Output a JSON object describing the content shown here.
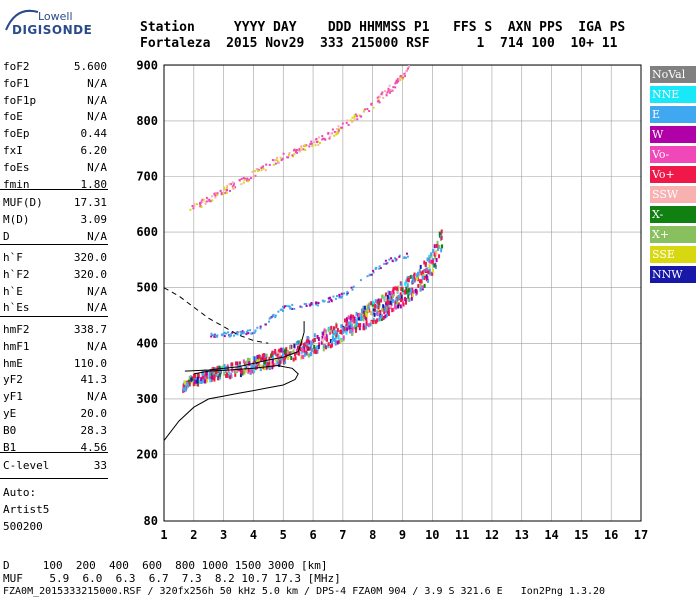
{
  "logo": {
    "line1": "Lowell",
    "line2": "DIGISONDE"
  },
  "header": {
    "row1": "Station     YYYY DAY    DDD HHMMSS P1   FFS S  AXN PPS  IGA PS",
    "row2": "Fortaleza  2015 Nov29  333 215000 RSF      1  714 100  10+ 11"
  },
  "params_group1": [
    {
      "name": "foF2",
      "value": "5.600"
    },
    {
      "name": "foF1",
      "value": "N/A"
    },
    {
      "name": "foF1p",
      "value": "N/A"
    },
    {
      "name": "foE",
      "value": "N/A"
    },
    {
      "name": "foEp",
      "value": "0.44"
    },
    {
      "name": "fxI",
      "value": "6.20"
    },
    {
      "name": "foEs",
      "value": "N/A"
    },
    {
      "name": "fmin",
      "value": "1.80"
    }
  ],
  "params_group2": [
    {
      "name": "MUF(D)",
      "value": "17.31"
    },
    {
      "name": "M(D)",
      "value": "3.09"
    },
    {
      "name": "D",
      "value": "N/A"
    }
  ],
  "params_group3": [
    {
      "name": "h`F",
      "value": "320.0"
    },
    {
      "name": "h`F2",
      "value": "320.0"
    },
    {
      "name": "h`E",
      "value": "N/A"
    },
    {
      "name": "h`Es",
      "value": "N/A"
    }
  ],
  "params_group4": [
    {
      "name": "hmF2",
      "value": "338.7"
    },
    {
      "name": "hmF1",
      "value": "N/A"
    },
    {
      "name": "hmE",
      "value": "110.0"
    },
    {
      "name": "yF2",
      "value": "41.3"
    },
    {
      "name": "yF1",
      "value": "N/A"
    },
    {
      "name": "yE",
      "value": "20.0"
    },
    {
      "name": "B0",
      "value": "28.3"
    },
    {
      "name": "B1",
      "value": "4.56"
    }
  ],
  "params_group5": [
    {
      "name": "C-level",
      "value": "33"
    }
  ],
  "footer_left": {
    "auto": "Auto:",
    "artist": "Artist5",
    "code": "500200"
  },
  "legend": [
    {
      "label": "NoVal",
      "color": "#808080"
    },
    {
      "label": "NNE",
      "color": "#18e8f8"
    },
    {
      "label": "E",
      "color": "#40a8f0"
    },
    {
      "label": "W",
      "color": "#b000a8"
    },
    {
      "label": "Vo-",
      "color": "#f048b8"
    },
    {
      "label": "Vo+",
      "color": "#f01848"
    },
    {
      "label": "SSW",
      "color": "#f8b0b0"
    },
    {
      "label": "X-",
      "color": "#108010"
    },
    {
      "label": "X+",
      "color": "#88c060"
    },
    {
      "label": "SSE",
      "color": "#d8d810"
    },
    {
      "label": "NNW",
      "color": "#1818a8"
    }
  ],
  "bottom": {
    "d_row": "D     100  200  400  600  800 1000 1500 3000 [km]",
    "muf_row": "MUF    5.9  6.0  6.3  6.7  7.3  8.2 10.7 17.3 [MHz]",
    "file_row": "FZA0M_2015333215000.RSF / 320fx256h 50 kHz 5.0 km / DPS-4 FZA0M 904 / 3.9 S 321.6 E   Ion2Png 1.3.20"
  },
  "chart_data": {
    "type": "scatter",
    "title": "",
    "xlabel": "",
    "ylabel": "",
    "xlim": [
      1,
      17
    ],
    "ylim": [
      80,
      900
    ],
    "xticks": [
      "1",
      "2",
      "3",
      "4",
      "5",
      "6",
      "7",
      "8",
      "9",
      "10",
      "11",
      "12",
      "13",
      "14",
      "15",
      "16",
      "17"
    ],
    "yticks": [
      "900",
      "800",
      "700",
      "600",
      "500",
      "400",
      "300",
      "200",
      "80"
    ],
    "grid": true,
    "legend_position": "right",
    "echo_traces": [
      {
        "name": "O-trace F2",
        "points": [
          [
            1.6,
            325
          ],
          [
            2.0,
            335
          ],
          [
            2.5,
            345
          ],
          [
            3.0,
            350
          ],
          [
            3.5,
            355
          ],
          [
            4.0,
            362
          ],
          [
            4.5,
            370
          ],
          [
            5.0,
            378
          ],
          [
            5.5,
            388
          ],
          [
            6.0,
            398
          ],
          [
            6.5,
            410
          ],
          [
            7.0,
            425
          ],
          [
            7.5,
            440
          ],
          [
            8.0,
            455
          ],
          [
            8.5,
            470
          ],
          [
            9.0,
            490
          ],
          [
            9.5,
            510
          ],
          [
            10.0,
            545
          ],
          [
            10.3,
            590
          ]
        ]
      },
      {
        "name": "multi-hop",
        "points": [
          [
            1.8,
            640
          ],
          [
            2.5,
            660
          ],
          [
            3.0,
            675
          ],
          [
            3.5,
            690
          ],
          [
            4.0,
            705
          ],
          [
            5.0,
            735
          ],
          [
            6.0,
            760
          ],
          [
            7.0,
            790
          ],
          [
            8.0,
            830
          ],
          [
            8.8,
            870
          ],
          [
            9.2,
            895
          ]
        ]
      },
      {
        "name": "E-region spread",
        "points": [
          [
            2.5,
            415
          ],
          [
            3.5,
            418
          ],
          [
            4.0,
            422
          ],
          [
            5.0,
            465
          ],
          [
            6.0,
            470
          ],
          [
            7.0,
            488
          ],
          [
            8.5,
            550
          ],
          [
            9.2,
            560
          ]
        ]
      }
    ],
    "profile_solid": [
      [
        1.0,
        225
      ],
      [
        1.5,
        260
      ],
      [
        2.0,
        285
      ],
      [
        2.5,
        300
      ],
      [
        3.0,
        305
      ],
      [
        3.5,
        310
      ],
      [
        4.0,
        315
      ],
      [
        4.5,
        320
      ],
      [
        5.0,
        325
      ],
      [
        5.4,
        335
      ],
      [
        5.5,
        345
      ],
      [
        5.3,
        355
      ],
      [
        4.8,
        360
      ],
      [
        4.0,
        355
      ],
      [
        3.2,
        352
      ],
      [
        2.5,
        350
      ],
      [
        2.0,
        345
      ]
    ],
    "profile_trace": [
      [
        1.7,
        350
      ],
      [
        2.5,
        352
      ],
      [
        3.5,
        358
      ],
      [
        4.5,
        370
      ],
      [
        5.0,
        375
      ],
      [
        5.5,
        385
      ],
      [
        5.6,
        400
      ],
      [
        5.7,
        420
      ],
      [
        5.7,
        440
      ]
    ],
    "profile_dashed": [
      [
        1.0,
        500
      ],
      [
        1.5,
        485
      ],
      [
        2.0,
        465
      ],
      [
        2.5,
        445
      ],
      [
        3.0,
        430
      ],
      [
        3.5,
        415
      ],
      [
        4.0,
        405
      ],
      [
        4.5,
        400
      ]
    ]
  }
}
